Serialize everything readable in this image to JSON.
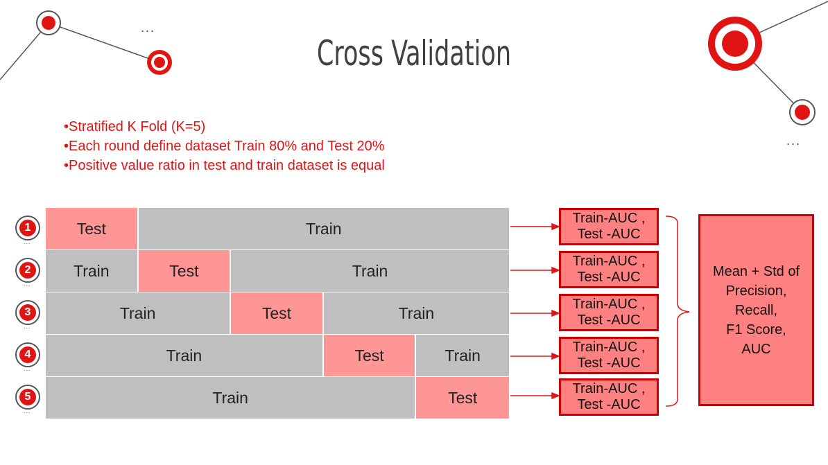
{
  "title": "Cross Validation",
  "bullets": [
    "•Stratified K Fold (K=5)",
    "•Each round define dataset Train 80% and Test 20%",
    "•Positive value ratio in test and train dataset is equal"
  ],
  "ellipsis": "...",
  "folds": [
    {
      "number": "1",
      "segments": [
        {
          "label": "Test",
          "kind": "test",
          "parts": 1
        },
        {
          "label": "Train",
          "kind": "train",
          "parts": 4
        }
      ]
    },
    {
      "number": "2",
      "segments": [
        {
          "label": "Train",
          "kind": "train",
          "parts": 1
        },
        {
          "label": "Test",
          "kind": "test",
          "parts": 1
        },
        {
          "label": "Train",
          "kind": "train",
          "parts": 3
        }
      ]
    },
    {
      "number": "3",
      "segments": [
        {
          "label": "Train",
          "kind": "train",
          "parts": 2
        },
        {
          "label": "Test",
          "kind": "test",
          "parts": 1
        },
        {
          "label": "Train",
          "kind": "train",
          "parts": 2
        }
      ]
    },
    {
      "number": "4",
      "segments": [
        {
          "label": "Train",
          "kind": "train",
          "parts": 3
        },
        {
          "label": "Test",
          "kind": "test",
          "parts": 1
        },
        {
          "label": "Train",
          "kind": "train",
          "parts": 1
        }
      ]
    },
    {
      "number": "5",
      "segments": [
        {
          "label": "Train",
          "kind": "train",
          "parts": 4
        },
        {
          "label": "Test",
          "kind": "test",
          "parts": 1
        }
      ]
    }
  ],
  "auc_box": {
    "line1": "Train-AUC ,",
    "line2": "Test -AUC"
  },
  "result": {
    "lines": [
      "Mean + Std of",
      "Precision,",
      "Recall,",
      "F1 Score,",
      "AUC"
    ]
  },
  "colors": {
    "accent": "#e11414",
    "test": "#ff9696",
    "train": "#bfbfbf",
    "box": "#ff8080",
    "box_border": "#cc0000"
  }
}
